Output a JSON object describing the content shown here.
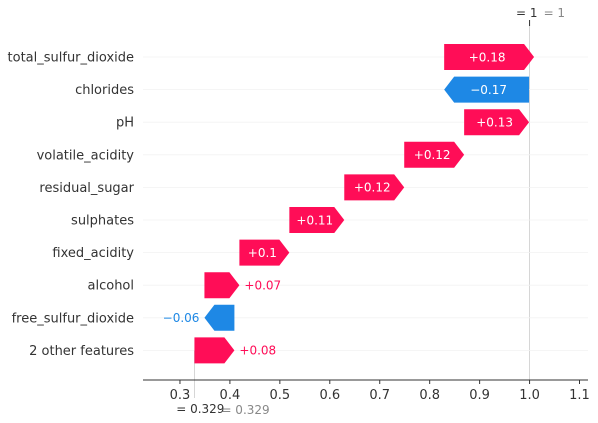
{
  "chart_data": {
    "type": "waterfall",
    "base_value": {
      "prefix": "= 0.329",
      "label": "= 0.329",
      "value": 0.329
    },
    "output_value": {
      "prefix": "= 1",
      "label": "= 1",
      "value": 1.0
    },
    "features": [
      {
        "name": "total_sulfur_dioxide",
        "value": 0.18,
        "label": "+0.18"
      },
      {
        "name": "chlorides",
        "value": -0.17,
        "label": "−0.17"
      },
      {
        "name": "pH",
        "value": 0.13,
        "label": "+0.13"
      },
      {
        "name": "volatile_acidity",
        "value": 0.12,
        "label": "+0.12"
      },
      {
        "name": "residual_sugar",
        "value": 0.12,
        "label": "+0.12"
      },
      {
        "name": "sulphates",
        "value": 0.11,
        "label": "+0.11"
      },
      {
        "name": "fixed_acidity",
        "value": 0.1,
        "label": "+0.1"
      },
      {
        "name": "alcohol",
        "value": 0.07,
        "label": "+0.07"
      },
      {
        "name": "free_sulfur_dioxide",
        "value": -0.06,
        "label": "−0.06"
      },
      {
        "name": "2 other features",
        "value": 0.08,
        "label": "+0.08"
      }
    ],
    "xlim": [
      0.226,
      1.117
    ],
    "x_ticks": [
      0.3,
      0.4,
      0.5,
      0.6,
      0.7,
      0.8,
      0.9,
      1.0,
      1.1
    ],
    "x_tick_labels": [
      "0.3",
      "0.4",
      "0.5",
      "0.6",
      "0.7",
      "0.8",
      "0.9",
      "1.0",
      "1.1"
    ],
    "grid": false
  },
  "colors": {
    "positive": "#ff0d57",
    "negative": "#1e88e5",
    "text": "#333333",
    "muted": "#888888",
    "axis": "#333333",
    "guide": "#cccccc"
  }
}
